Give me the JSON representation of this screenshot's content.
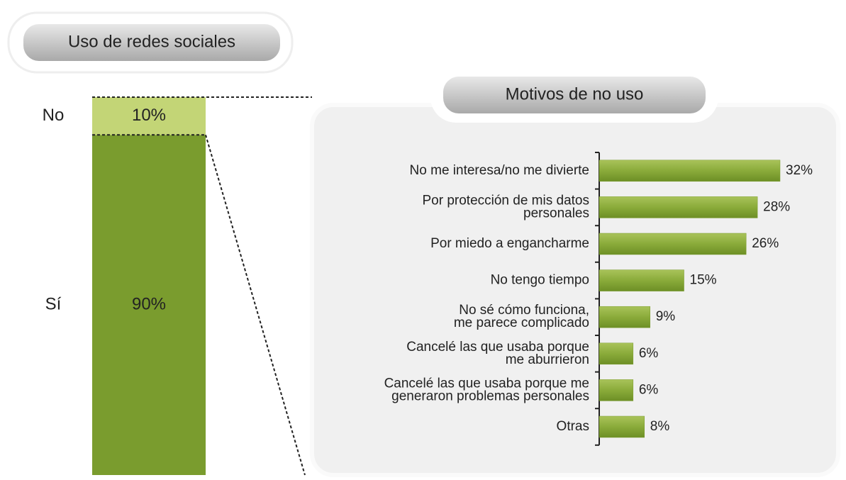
{
  "chart_data": [
    {
      "type": "stacked",
      "title": "Uso de redes sociales",
      "series": [
        {
          "name": "No",
          "values": [
            10
          ],
          "value_labels": [
            "10%"
          ],
          "color": "#c3d576"
        },
        {
          "name": "Sí",
          "values": [
            90
          ],
          "value_labels": [
            "90%"
          ],
          "color": "#7a9c2e"
        }
      ],
      "ylim": [
        0,
        100
      ]
    },
    {
      "type": "barh",
      "title": "Motivos de no uso",
      "categories": [
        "No me interesa/no me divierte",
        "Por protección de mis datos\npersonales",
        "Por miedo a engancharme",
        "No tengo tiempo",
        "No sé cómo funciona,\nme parece complicado",
        "Cancelé las que usaba porque\nme aburrieron",
        "Cancelé las que usaba porque me\ngeneraron problemas personales",
        "Otras"
      ],
      "values": [
        32,
        28,
        26,
        15,
        9,
        6,
        6,
        8
      ],
      "value_labels": [
        "32%",
        "28%",
        "26%",
        "15%",
        "9%",
        "6%",
        "6%",
        "8%"
      ],
      "color": "#7a9c2e",
      "xlim": [
        0,
        32
      ]
    }
  ]
}
